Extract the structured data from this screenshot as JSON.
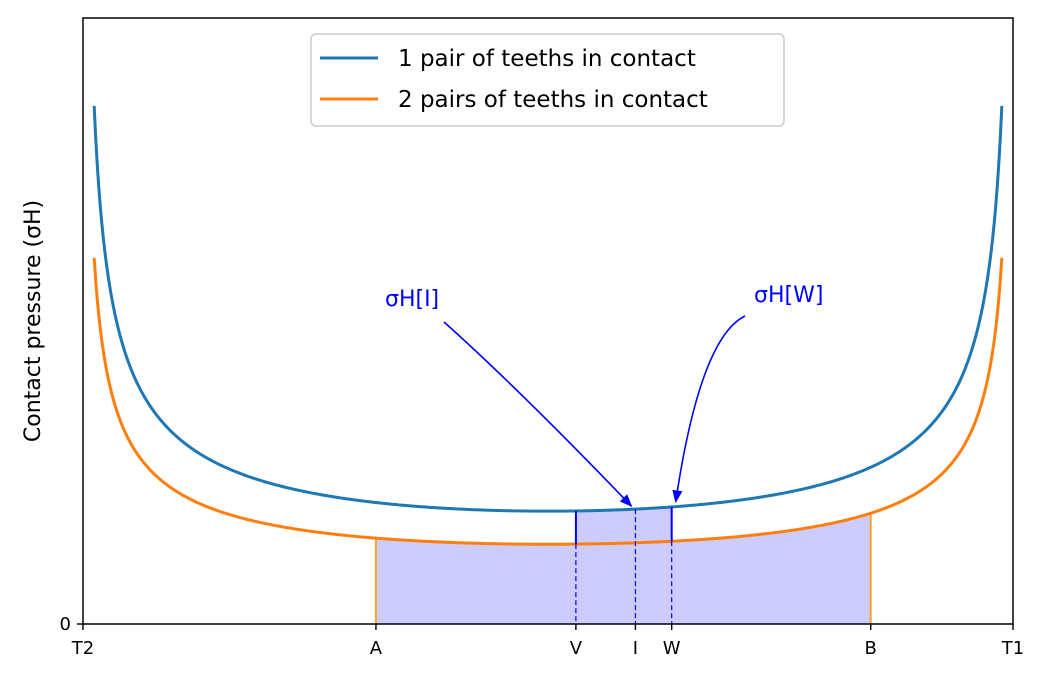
{
  "chart_data": {
    "type": "line",
    "title": "",
    "xlabel": "",
    "ylabel": "Contact pressure (σH)",
    "xlim": [
      0,
      1
    ],
    "ylim": [
      0,
      1
    ],
    "grid": false,
    "legend_position": "top-center",
    "x_ticks": [
      {
        "label": "T2",
        "x": 0.0
      },
      {
        "label": "A",
        "x": 0.315
      },
      {
        "label": "V",
        "x": 0.53
      },
      {
        "label": "I",
        "x": 0.594
      },
      {
        "label": "W",
        "x": 0.633
      },
      {
        "label": "B",
        "x": 0.847
      },
      {
        "label": "T1",
        "x": 1.0
      }
    ],
    "y_ticks": [
      {
        "label": "0",
        "y": 0
      }
    ],
    "series": [
      {
        "name": "1 pair of teeths in contact",
        "color": "#1f77b4",
        "k": 0.0931
      },
      {
        "name": "2 pairs of teeths in contact",
        "color": "#ff7f0e",
        "k": 0.0658
      }
    ],
    "fill": {
      "from_x": 0.315,
      "to_x": 0.847,
      "color": "#ccccff",
      "edge_color": "#f5a623"
    },
    "single_pair_zone": {
      "from_x": 0.53,
      "to_x": 0.633,
      "line_color": "#0000ff"
    },
    "annotations": [
      {
        "text": "σH[I]",
        "at_x": 0.594,
        "color": "#0000ff"
      },
      {
        "text": "σH[W]",
        "at_x": 0.633,
        "color": "#0000ff"
      }
    ]
  }
}
